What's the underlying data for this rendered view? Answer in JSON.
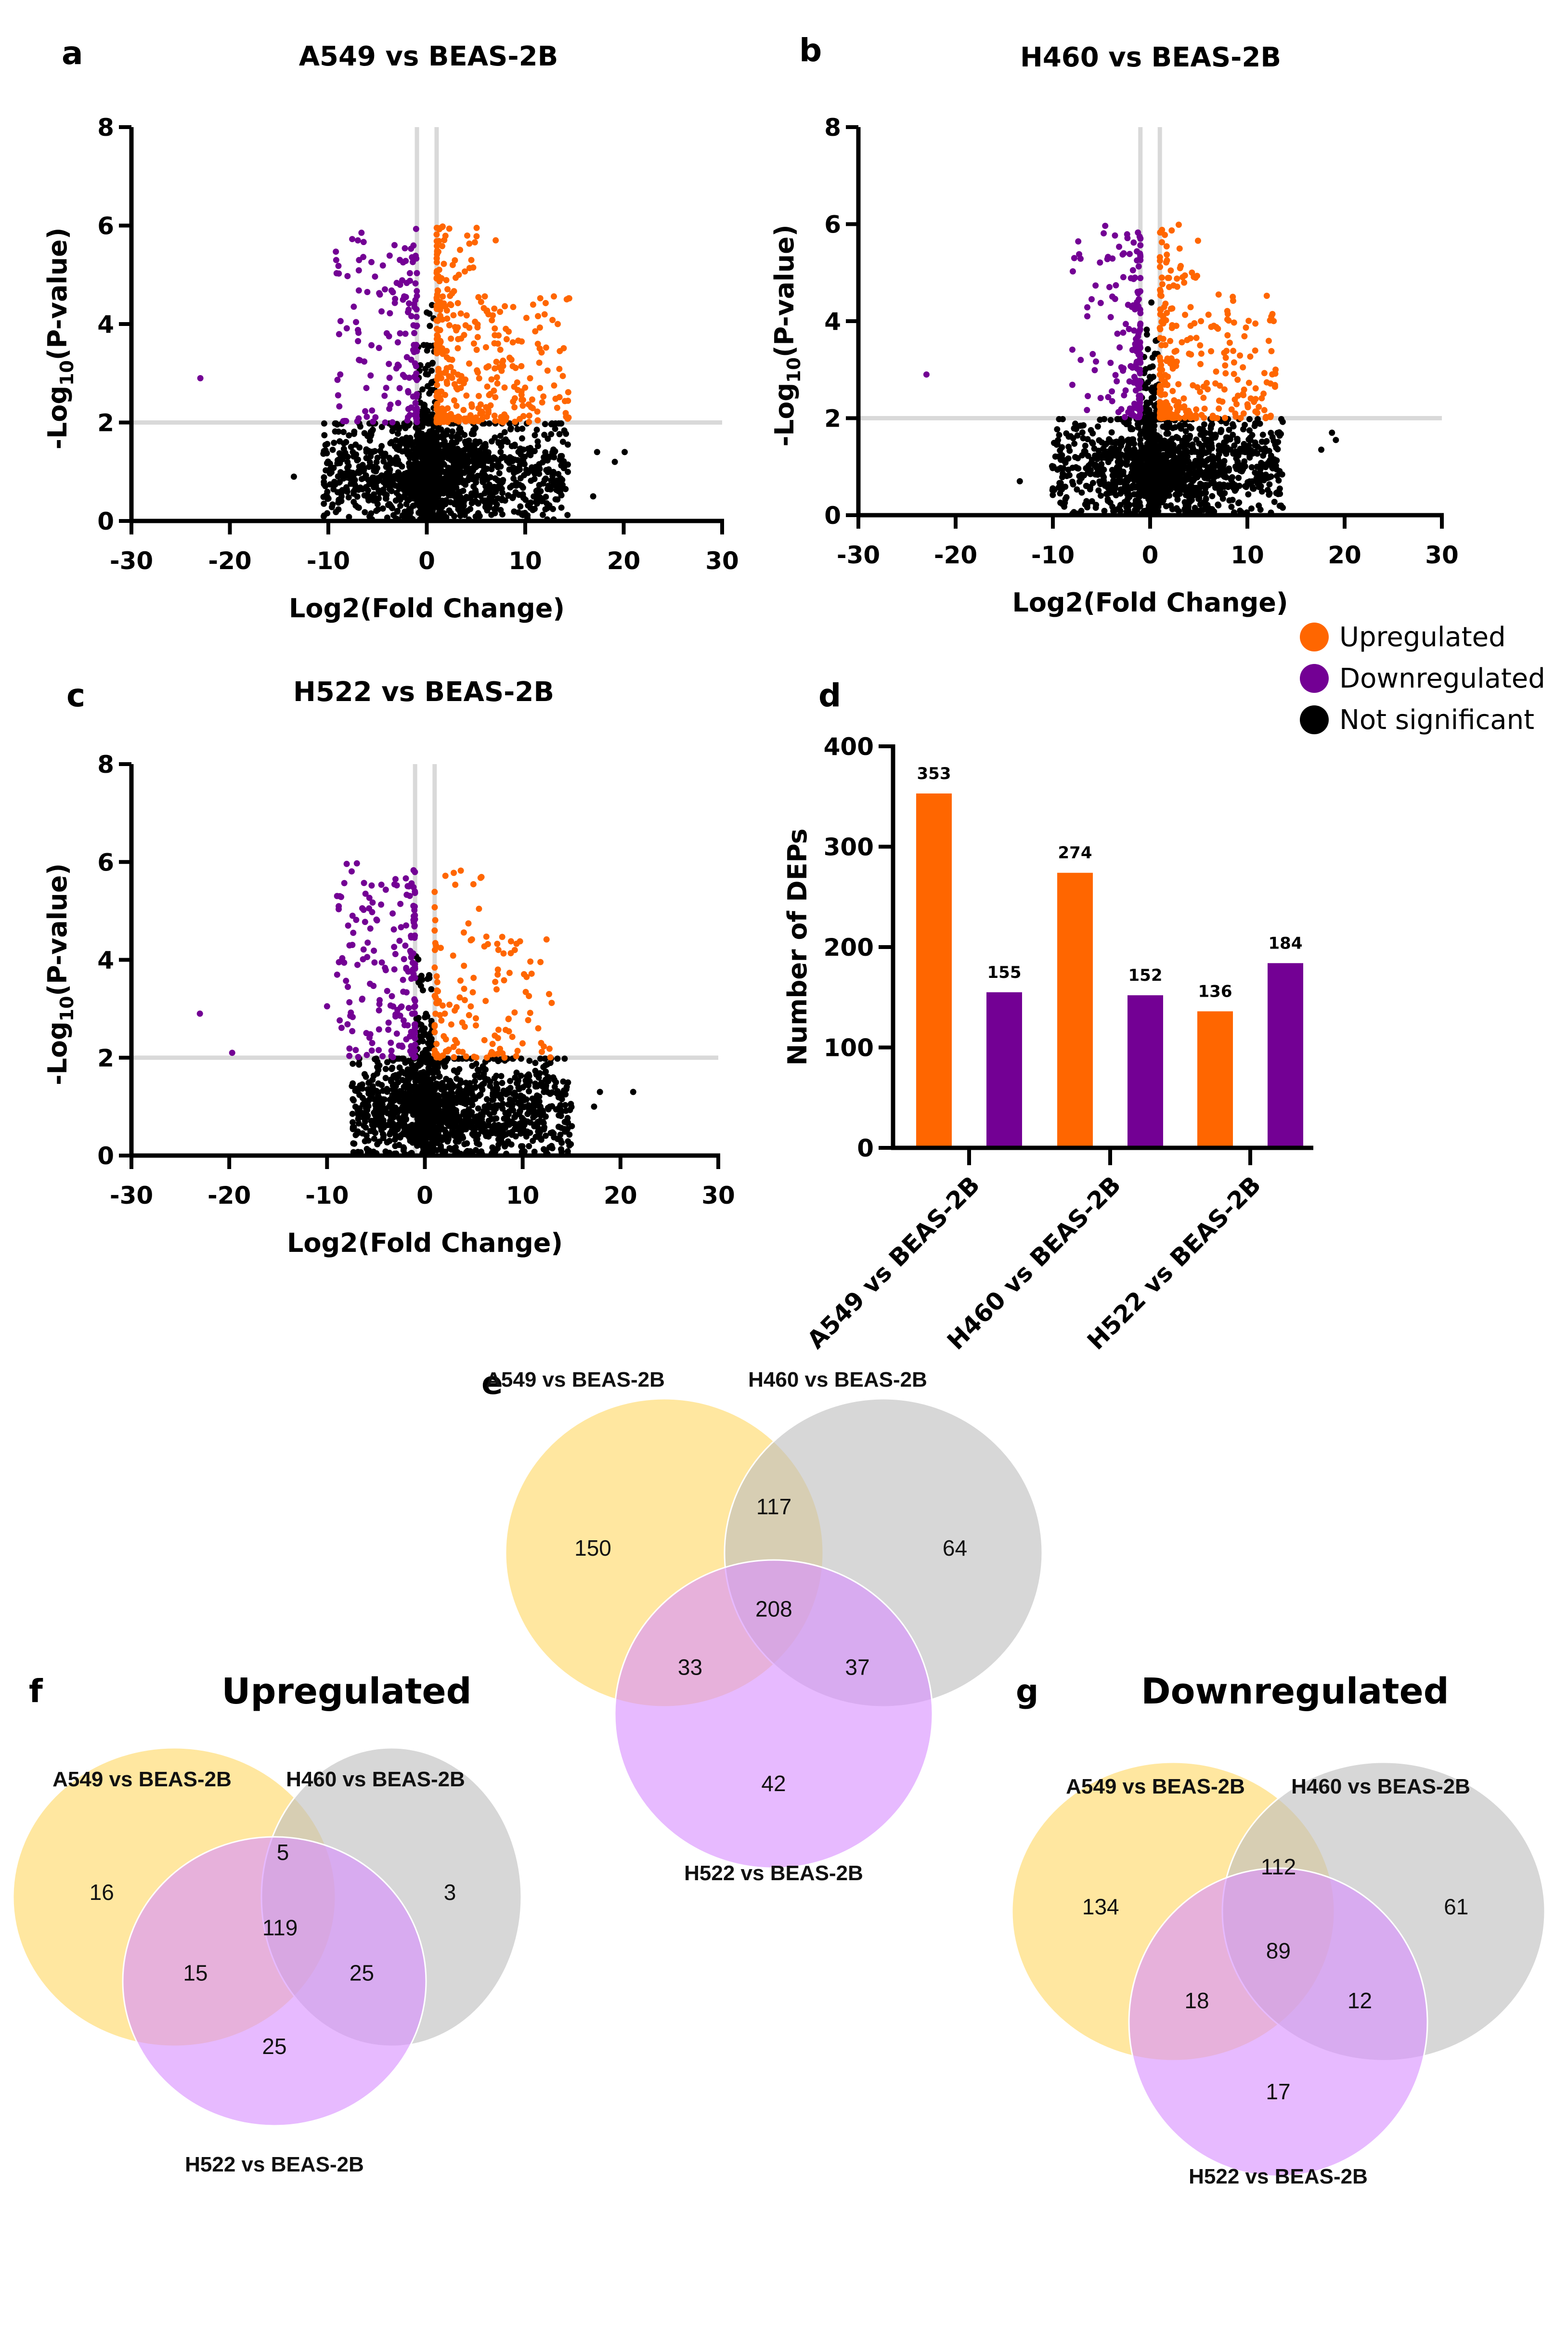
{
  "panels": {
    "a": {
      "letter": "a",
      "title": "A549 vs BEAS-2B"
    },
    "b": {
      "letter": "b",
      "title": "H460 vs BEAS-2B"
    },
    "c": {
      "letter": "c",
      "title": "H522 vs BEAS-2B"
    },
    "d": {
      "letter": "d"
    },
    "e": {
      "letter": "e"
    },
    "f": {
      "letter": "f",
      "title": "Upregulated"
    },
    "g": {
      "letter": "g",
      "title": "Downregulated"
    }
  },
  "legend": {
    "items": [
      {
        "label": "Upregulated",
        "color": "#FF6600"
      },
      {
        "label": "Downregulated",
        "color": "#730094"
      },
      {
        "label": "Not significant",
        "color": "#000000"
      }
    ]
  },
  "colors": {
    "up": "#FF6600",
    "down": "#730094",
    "ns": "#000000",
    "threshold": "#d9d9d9",
    "venn_a549": "#FFD966",
    "venn_h460": "#BFBFBF",
    "venn_h522": "#D98FFF"
  },
  "chart_data": [
    {
      "id": "a",
      "type": "scatter",
      "subtype": "volcano",
      "title": "A549 vs BEAS-2B",
      "xlabel": "Log2(Fold Change)",
      "ylabel": "-Log10(P-value)",
      "xlim": [
        -30,
        30
      ],
      "ylim": [
        0,
        8
      ],
      "xticks": [
        -30,
        -20,
        -10,
        0,
        10,
        20,
        30
      ],
      "yticks": [
        0,
        2,
        4,
        6,
        8
      ],
      "thresholds": {
        "x": [
          -1,
          1
        ],
        "y": 2
      },
      "counts": {
        "up": 353,
        "down": 155
      },
      "spread": {
        "up_xmax": 14.5,
        "down_xmin": -9.5,
        "ns_xmin": -14,
        "ns_xmax": 20.5,
        "ymax": 6
      },
      "notable_points": [
        {
          "x": -23,
          "y": 2.9,
          "class": "down"
        },
        {
          "x": -9.2,
          "y": 5.3,
          "class": "down"
        },
        {
          "x": 7,
          "y": 5.7,
          "class": "up"
        },
        {
          "x": 13.3,
          "y": 4.0,
          "class": "up"
        },
        {
          "x": 14.4,
          "y": 2.1,
          "class": "up"
        },
        {
          "x": 20.1,
          "y": 1.4,
          "class": "ns"
        },
        {
          "x": 17.3,
          "y": 1.4,
          "class": "ns"
        },
        {
          "x": 19.1,
          "y": 1.2,
          "class": "ns"
        },
        {
          "x": 16.9,
          "y": 0.5,
          "class": "ns"
        },
        {
          "x": -13.5,
          "y": 0.9,
          "class": "ns"
        }
      ],
      "grid": false
    },
    {
      "id": "b",
      "type": "scatter",
      "subtype": "volcano",
      "title": "H460 vs BEAS-2B",
      "xlabel": "Log2(Fold Change)",
      "ylabel": "-Log10(P-value)",
      "xlim": [
        -30,
        30
      ],
      "ylim": [
        0,
        8
      ],
      "xticks": [
        -30,
        -20,
        -10,
        0,
        10,
        20,
        30
      ],
      "yticks": [
        0,
        2,
        4,
        6,
        8
      ],
      "thresholds": {
        "x": [
          -1,
          1
        ],
        "y": 2
      },
      "counts": {
        "up": 274,
        "down": 152
      },
      "spread": {
        "up_xmax": 13,
        "down_xmin": -8,
        "ns_xmin": -13.5,
        "ns_xmax": 19.5,
        "ymax": 6
      },
      "notable_points": [
        {
          "x": -23,
          "y": 2.9,
          "class": "down"
        },
        {
          "x": -7.8,
          "y": 5.3,
          "class": "down"
        },
        {
          "x": 4.3,
          "y": 5.0,
          "class": "up"
        },
        {
          "x": 12.9,
          "y": 3.0,
          "class": "up"
        },
        {
          "x": 18.7,
          "y": 1.7,
          "class": "ns"
        },
        {
          "x": 19.1,
          "y": 1.55,
          "class": "ns"
        },
        {
          "x": 17.6,
          "y": 1.35,
          "class": "ns"
        },
        {
          "x": -13.4,
          "y": 0.7,
          "class": "ns"
        }
      ],
      "grid": false
    },
    {
      "id": "c",
      "type": "scatter",
      "subtype": "volcano",
      "title": "H522 vs BEAS-2B",
      "xlabel": "Log2(Fold Change)",
      "ylabel": "-Log10(P-value)",
      "xlim": [
        -30,
        30
      ],
      "ylim": [
        0,
        8
      ],
      "xticks": [
        -30,
        -20,
        -10,
        0,
        10,
        20,
        30
      ],
      "yticks": [
        0,
        2,
        4,
        6,
        8
      ],
      "thresholds": {
        "x": [
          -1,
          1
        ],
        "y": 2
      },
      "counts": {
        "up": 136,
        "down": 184
      },
      "spread": {
        "up_xmax": 13,
        "down_xmin": -9,
        "ns_xmin": -10,
        "ns_xmax": 21.5,
        "ymax": 6
      },
      "notable_points": [
        {
          "x": -23,
          "y": 2.9,
          "class": "down"
        },
        {
          "x": -19.7,
          "y": 2.1,
          "class": "down"
        },
        {
          "x": -10,
          "y": 3.05,
          "class": "down"
        },
        {
          "x": -8.7,
          "y": 5.3,
          "class": "down"
        },
        {
          "x": 4.7,
          "y": 4.4,
          "class": "up"
        },
        {
          "x": 10.4,
          "y": 3.65,
          "class": "up"
        },
        {
          "x": 12.7,
          "y": 3.3,
          "class": "up"
        },
        {
          "x": 21.3,
          "y": 1.3,
          "class": "ns"
        },
        {
          "x": 17.9,
          "y": 1.3,
          "class": "ns"
        },
        {
          "x": 17.3,
          "y": 1.0,
          "class": "ns"
        }
      ],
      "grid": false
    },
    {
      "id": "d",
      "type": "bar",
      "title": "",
      "xlabel": "",
      "ylabel": "Number of DEPs",
      "ylim": [
        0,
        400
      ],
      "yticks": [
        0,
        100,
        200,
        300,
        400
      ],
      "categories": [
        "A549 vs BEAS-2B",
        "H460 vs BEAS-2B",
        "H522 vs BEAS-2B"
      ],
      "series": [
        {
          "name": "Upregulated",
          "color": "#FF6600",
          "values": [
            353,
            274,
            136
          ]
        },
        {
          "name": "Downregulated",
          "color": "#730094",
          "values": [
            155,
            152,
            184
          ]
        }
      ],
      "legend_position": "top-right",
      "grid": false
    },
    {
      "id": "e",
      "type": "venn",
      "title": "",
      "sets": [
        "A549 vs BEAS-2B",
        "H460 vs BEAS-2B",
        "H522 vs BEAS-2B"
      ],
      "regions": {
        "A_only": 150,
        "B_only": 64,
        "C_only": 42,
        "AB": 117,
        "AC": 33,
        "BC": 37,
        "ABC": 208
      }
    },
    {
      "id": "f",
      "type": "venn",
      "title": "Upregulated",
      "sets": [
        "A549 vs BEAS-2B",
        "H460 vs BEAS-2B",
        "H522 vs BEAS-2B"
      ],
      "regions": {
        "A_only": 16,
        "B_only": 3,
        "C_only": 25,
        "AB": 5,
        "AC": 15,
        "BC": 25,
        "ABC": 119
      }
    },
    {
      "id": "g",
      "type": "venn",
      "title": "Downregulated",
      "sets": [
        "A549 vs BEAS-2B",
        "H460 vs BEAS-2B",
        "H522 vs BEAS-2B"
      ],
      "regions": {
        "A_only": 134,
        "B_only": 61,
        "C_only": 17,
        "AB": 112,
        "AC": 18,
        "BC": 12,
        "ABC": 89
      }
    }
  ]
}
